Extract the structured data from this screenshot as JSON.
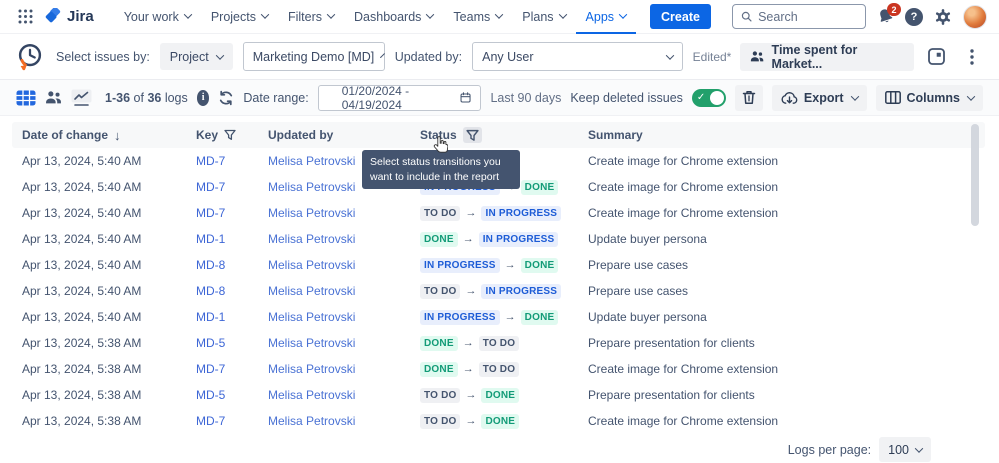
{
  "colors": {
    "brand_blue": "#0C66E4",
    "toggle_green": "#22A06B",
    "notification_red": "#CA3521",
    "badge_inprogress_bg": "#E8EEFC",
    "badge_inprogress_text": "#1D5CD6",
    "badge_done_bg": "#E0FAF0",
    "badge_done_text": "#129B77",
    "badge_todo_bg": "#EFF0F3",
    "badge_todo_text": "#44546E",
    "tooltip_bg": "#44546F"
  },
  "icons": {
    "app-switcher-icon": "grid-dots",
    "search-icon": "magnifier",
    "notifications-icon": "bell",
    "help-icon": "question-circle",
    "settings-icon": "gear",
    "clock-logo-icon": "clock-with-orange-arrow",
    "table-view-icon": "blue-grid-table",
    "people-view-icon": "two-users",
    "chart-view-icon": "line-chart",
    "info-icon": "info-circle",
    "refresh-icon": "circular-arrows",
    "calendar-icon": "calendar",
    "trash-icon": "trash-can",
    "export-icon": "cloud-download",
    "columns-icon": "column-bars",
    "filter-icon": "funnel",
    "sort-desc-icon": "arrow-down",
    "transition-arrow-icon": "right-arrow",
    "overflow-menu-icon": "vertical-dots",
    "window-switcher-icon": "stacked-squares",
    "chevron-down-icon": "chevron",
    "check-icon": "checkmark"
  },
  "top_nav": {
    "product_name": "Jira",
    "items": [
      "Your work",
      "Projects",
      "Filters",
      "Dashboards",
      "Teams",
      "Plans",
      "Apps"
    ],
    "active_item": "Apps",
    "create_button": "Create",
    "search_placeholder": "Search",
    "notification_badge": "2"
  },
  "filter_bar": {
    "select_issues_label": "Select issues by:",
    "mode_dropdown_value": "Project",
    "project_dropdown_value": "Marketing Demo [MD]",
    "updated_by_label": "Updated by:",
    "updated_by_value": "Any User",
    "edited_label": "Edited*",
    "report_selector_value": "Time spent for Market..."
  },
  "toolbar": {
    "logs_range": "1-36",
    "logs_of": "of",
    "logs_total": "36",
    "logs_word": "logs",
    "date_range_label": "Date range:",
    "date_range_value": "01/20/2024 - 04/19/2024",
    "date_range_preset": "Last 90 days",
    "keep_deleted_label": "Keep deleted issues",
    "keep_deleted_on": true,
    "export_label": "Export",
    "columns_label": "Columns"
  },
  "table": {
    "headers": {
      "date": "Date of change",
      "key": "Key",
      "updated_by": "Updated by",
      "status": "Status",
      "summary": "Summary"
    },
    "rows": [
      {
        "date": "Apr 13, 2024, 5:40 AM",
        "key": "MD-7",
        "updated_by": "Melisa Petrovski",
        "status_from": null,
        "status_to": null,
        "summary": "Create image for Chrome extension"
      },
      {
        "date": "Apr 13, 2024, 5:40 AM",
        "key": "MD-7",
        "updated_by": "Melisa Petrovski",
        "status_from": "IN PROGRESS",
        "status_to": "DONE",
        "summary": "Create image for Chrome extension"
      },
      {
        "date": "Apr 13, 2024, 5:40 AM",
        "key": "MD-7",
        "updated_by": "Melisa Petrovski",
        "status_from": "TO DO",
        "status_to": "IN PROGRESS",
        "summary": "Create image for Chrome extension"
      },
      {
        "date": "Apr 13, 2024, 5:40 AM",
        "key": "MD-1",
        "updated_by": "Melisa Petrovski",
        "status_from": "DONE",
        "status_to": "IN PROGRESS",
        "summary": "Update buyer persona"
      },
      {
        "date": "Apr 13, 2024, 5:40 AM",
        "key": "MD-8",
        "updated_by": "Melisa Petrovski",
        "status_from": "IN PROGRESS",
        "status_to": "DONE",
        "summary": "Prepare use cases"
      },
      {
        "date": "Apr 13, 2024, 5:40 AM",
        "key": "MD-8",
        "updated_by": "Melisa Petrovski",
        "status_from": "TO DO",
        "status_to": "IN PROGRESS",
        "summary": "Prepare use cases"
      },
      {
        "date": "Apr 13, 2024, 5:40 AM",
        "key": "MD-1",
        "updated_by": "Melisa Petrovski",
        "status_from": "IN PROGRESS",
        "status_to": "DONE",
        "summary": "Update buyer persona"
      },
      {
        "date": "Apr 13, 2024, 5:38 AM",
        "key": "MD-5",
        "updated_by": "Melisa Petrovski",
        "status_from": "DONE",
        "status_to": "TO DO",
        "summary": "Prepare presentation for clients"
      },
      {
        "date": "Apr 13, 2024, 5:38 AM",
        "key": "MD-7",
        "updated_by": "Melisa Petrovski",
        "status_from": "DONE",
        "status_to": "TO DO",
        "summary": "Create image for Chrome extension"
      },
      {
        "date": "Apr 13, 2024, 5:38 AM",
        "key": "MD-5",
        "updated_by": "Melisa Petrovski",
        "status_from": "TO DO",
        "status_to": "DONE",
        "summary": "Prepare presentation for clients"
      },
      {
        "date": "Apr 13, 2024, 5:38 AM",
        "key": "MD-7",
        "updated_by": "Melisa Petrovski",
        "status_from": "TO DO",
        "status_to": "DONE",
        "summary": "Create image for Chrome extension"
      }
    ]
  },
  "tooltip_text": "Select status transitions you want to include in the report",
  "pagination": {
    "label": "Logs per page:",
    "value": "100"
  }
}
